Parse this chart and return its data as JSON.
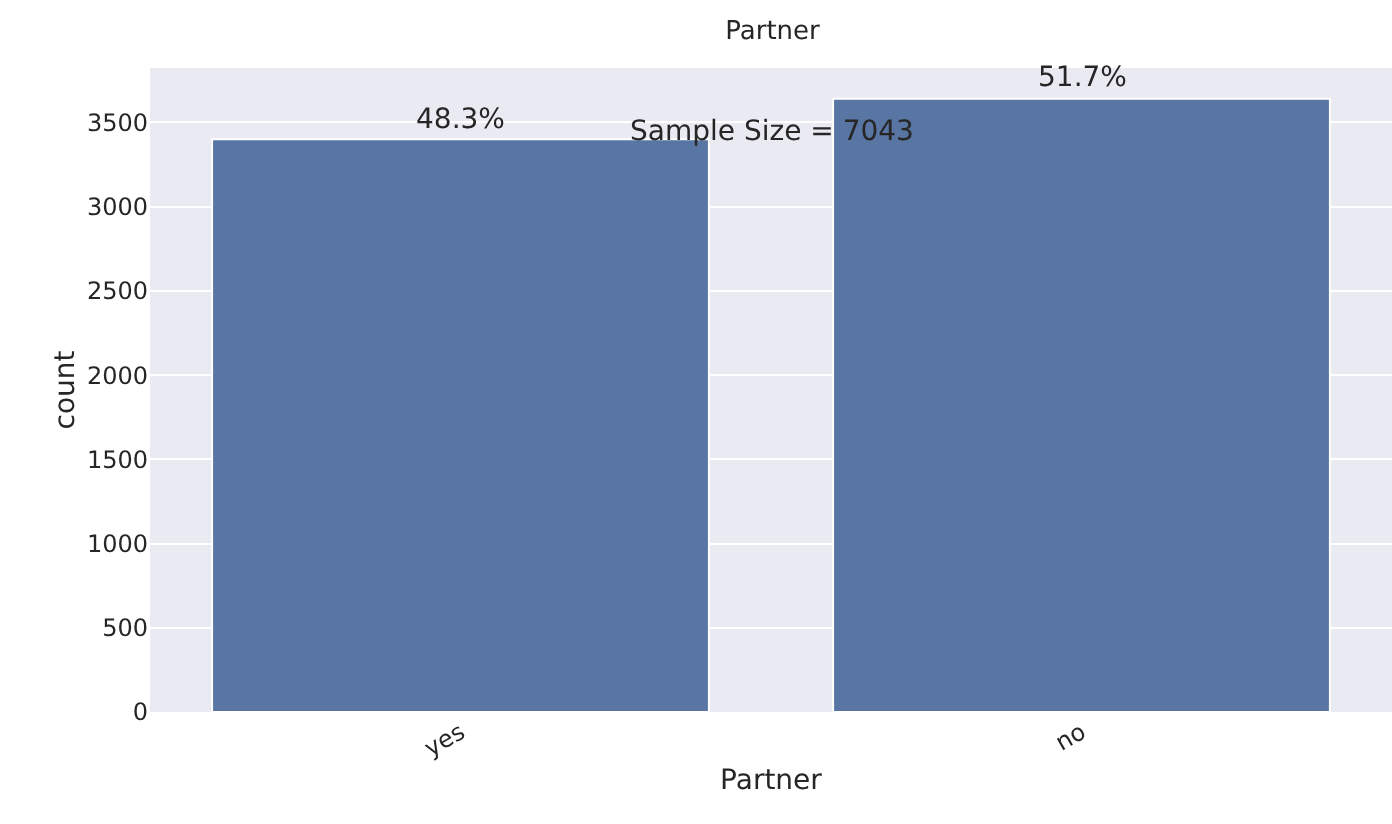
{
  "chart_data": {
    "type": "bar",
    "title": "Partner",
    "xlabel": "Partner",
    "ylabel": "count",
    "categories": [
      "yes",
      "no"
    ],
    "values": [
      3400,
      3640
    ],
    "color": "#5975a4",
    "ylim": [
      0,
      3823
    ],
    "yticks": [
      0,
      500,
      1000,
      1500,
      2000,
      2500,
      3000,
      3500
    ],
    "grid": "y",
    "annotations": [
      {
        "text": "48.3%",
        "x": "yes",
        "y": 3400
      },
      {
        "text": "51.7%",
        "x": "no",
        "y": 3640
      },
      "Sample Size = 7043"
    ]
  }
}
